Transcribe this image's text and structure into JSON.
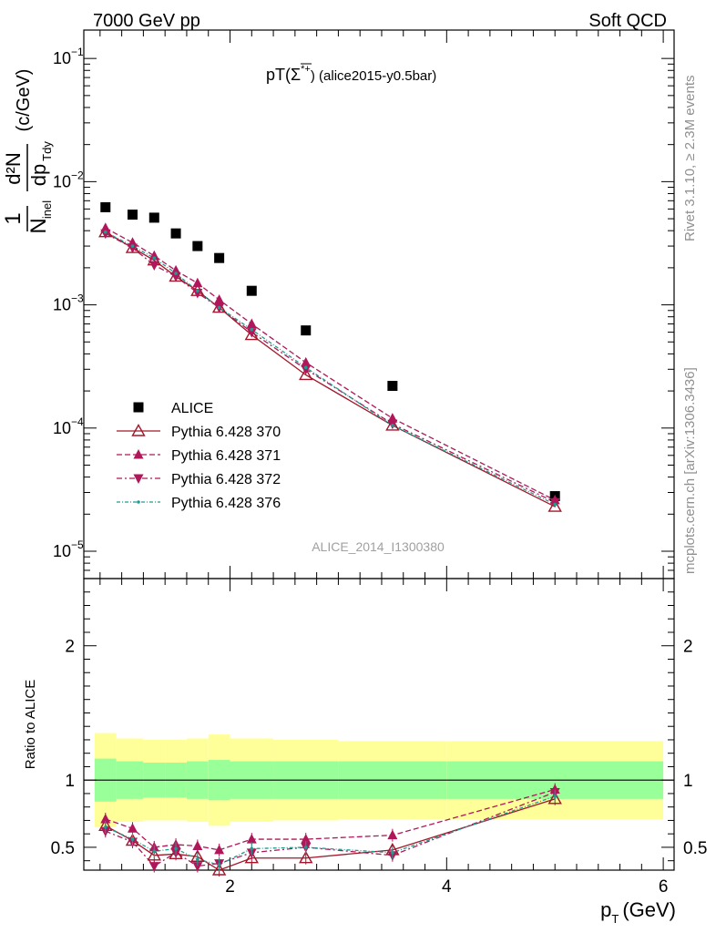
{
  "header": {
    "left": "7000 GeV pp",
    "right": "Soft QCD"
  },
  "side_labels": {
    "rivet": "Rivet 3.1.10, ≥ 2.3M events",
    "mcplots": "mcplots.cern.ch [arXiv:1306.3436]"
  },
  "colors": {
    "alice": "#000000",
    "p370": "#a3162a",
    "p371": "#b0175a",
    "p372": "#b0175a",
    "p376": "#1e9e8f",
    "band_inner": "#99ff99",
    "band_outer": "#ffff99",
    "analysis_label": "#a0a0a0"
  },
  "chart_data": [
    {
      "type": "scatter",
      "title": "pT(Σ̄*⁺) (alice2015-y0.5bar)",
      "title_main": "pT(",
      "title_sym": "Σ",
      "title_sup": "*+",
      "title_rest": ") (alice2015-y0.5bar)",
      "ylabel_parts": {
        "one": "1",
        "n": "N",
        "inel": "inel",
        "d2n": "d²N",
        "dpt": "dp",
        "tdy": "Tdy",
        "units": "(c/GeV)"
      },
      "yscale": "log",
      "ylim": [
        6e-06,
        0.17
      ],
      "xlim": [
        0.65,
        6.1
      ],
      "y_ticks": [
        {
          "v": 0.1,
          "mant": "10",
          "exp": "−1"
        },
        {
          "v": 0.01,
          "mant": "10",
          "exp": "−2"
        },
        {
          "v": 0.001,
          "mant": "10",
          "exp": "−3"
        },
        {
          "v": 0.0001,
          "mant": "10",
          "exp": "−4"
        },
        {
          "v": 1e-05,
          "mant": "10",
          "exp": "−5"
        }
      ],
      "analysis_label": "ALICE_2014_I1300380",
      "series": [
        {
          "name": "ALICE",
          "style": "data",
          "x": [
            0.85,
            1.1,
            1.3,
            1.5,
            1.7,
            1.9,
            2.2,
            2.7,
            3.5,
            5.0
          ],
          "y": [
            0.0062,
            0.0054,
            0.0051,
            0.0038,
            0.003,
            0.0024,
            0.0013,
            0.00062,
            0.00022,
            2.8e-05
          ]
        },
        {
          "name": "Pythia 6.428 370",
          "style": "p370",
          "x": [
            0.85,
            1.1,
            1.3,
            1.5,
            1.7,
            1.9,
            2.2,
            2.7,
            3.5,
            5.0
          ],
          "y": [
            0.0039,
            0.0029,
            0.0023,
            0.0017,
            0.0013,
            0.00095,
            0.00057,
            0.00027,
            0.000105,
            2.3e-05
          ]
        },
        {
          "name": "Pythia 6.428 371",
          "style": "p371",
          "x": [
            0.85,
            1.1,
            1.3,
            1.5,
            1.7,
            1.9,
            2.2,
            2.7,
            3.5,
            5.0
          ],
          "y": [
            0.0042,
            0.0032,
            0.0025,
            0.0019,
            0.0015,
            0.0011,
            0.0007,
            0.00034,
            0.00012,
            2.6e-05
          ]
        },
        {
          "name": "Pythia 6.428 372",
          "style": "p372",
          "x": [
            0.85,
            1.1,
            1.3,
            1.5,
            1.7,
            1.9,
            2.2,
            2.7,
            3.5,
            5.0
          ],
          "y": [
            0.0038,
            0.0029,
            0.0021,
            0.0017,
            0.00125,
            0.00095,
            0.0006,
            0.0003,
            0.000108,
            2.5e-05
          ]
        },
        {
          "name": "Pythia 6.428 376",
          "style": "p376",
          "x": [
            0.85,
            1.1,
            1.3,
            1.5,
            1.7,
            1.9,
            2.2,
            2.7,
            3.5,
            5.0
          ],
          "y": [
            0.0039,
            0.003,
            0.0024,
            0.0018,
            0.0013,
            0.00095,
            0.00063,
            0.00031,
            0.000105,
            2.4e-05
          ]
        }
      ]
    },
    {
      "type": "line",
      "ylabel": "Ratio to ALICE",
      "xlabel_main": "p",
      "xlabel_sub": "T",
      "xlabel_units": "(GeV)",
      "xlim": [
        0.65,
        6.1
      ],
      "ylim": [
        0.33,
        2.5
      ],
      "x_ticks": [
        2,
        4,
        6
      ],
      "y_ticks": [
        0.5,
        1,
        2
      ],
      "bands": {
        "edges": [
          0.75,
          0.95,
          1.2,
          1.4,
          1.6,
          1.8,
          2.0,
          2.4,
          3.0,
          4.0,
          6.0
        ],
        "inner_lo": [
          0.84,
          0.86,
          0.87,
          0.87,
          0.86,
          0.85,
          0.86,
          0.86,
          0.86,
          0.86
        ],
        "inner_hi": [
          1.16,
          1.14,
          1.13,
          1.13,
          1.14,
          1.15,
          1.14,
          1.14,
          1.14,
          1.14
        ],
        "outer_lo": [
          0.65,
          0.69,
          0.7,
          0.7,
          0.69,
          0.66,
          0.69,
          0.7,
          0.71,
          0.71
        ],
        "outer_hi": [
          1.35,
          1.31,
          1.3,
          1.3,
          1.31,
          1.34,
          1.31,
          1.3,
          1.29,
          1.29
        ]
      },
      "series": [
        {
          "name": "Pythia 6.428 370",
          "style": "p370",
          "x": [
            0.85,
            1.1,
            1.3,
            1.5,
            1.7,
            1.9,
            2.2,
            2.7,
            3.5,
            5.0
          ],
          "y": [
            0.66,
            0.55,
            0.44,
            0.45,
            0.43,
            0.33,
            0.42,
            0.42,
            0.48,
            0.86
          ]
        },
        {
          "name": "Pythia 6.428 371",
          "style": "p371",
          "x": [
            0.85,
            1.1,
            1.3,
            1.5,
            1.7,
            1.9,
            2.2,
            2.7,
            3.5,
            5.0
          ],
          "y": [
            0.71,
            0.64,
            0.5,
            0.52,
            0.51,
            0.48,
            0.56,
            0.56,
            0.59,
            0.93
          ]
        },
        {
          "name": "Pythia 6.428 372",
          "style": "p372",
          "x": [
            0.85,
            1.1,
            1.3,
            1.5,
            1.7,
            1.9,
            2.2,
            2.7,
            3.5,
            5.0
          ],
          "y": [
            0.62,
            0.54,
            0.36,
            0.46,
            0.36,
            0.38,
            0.46,
            0.5,
            0.44,
            0.91
          ]
        },
        {
          "name": "Pythia 6.428 376",
          "style": "p376",
          "x": [
            0.85,
            1.1,
            1.3,
            1.5,
            1.7,
            1.9,
            2.2,
            2.7,
            3.5,
            5.0
          ],
          "y": [
            0.65,
            0.56,
            0.47,
            0.49,
            0.41,
            0.37,
            0.49,
            0.5,
            0.46,
            0.88
          ]
        }
      ]
    }
  ]
}
